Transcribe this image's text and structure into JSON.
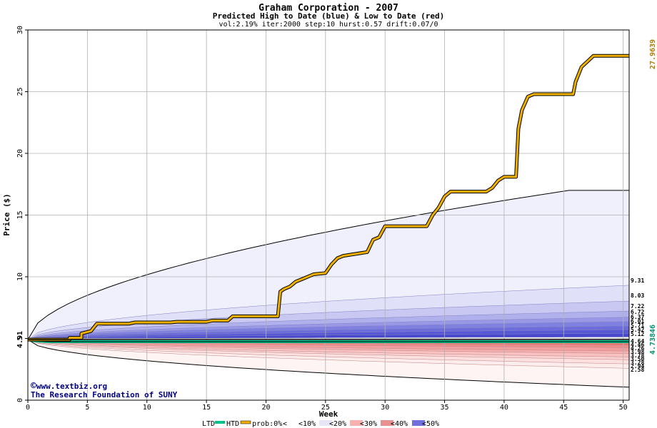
{
  "chart_data": {
    "type": "area",
    "title": "Graham Corporation - 2007",
    "subtitle": "Predicted High to Date (blue) &  Low to Date (red)",
    "params": "vol:2.19% iter:2000 step:10 hurst:0.57 drift:0.07/0",
    "xlabel": "Week",
    "ylabel": "Price ($)",
    "xlim": [
      0,
      50.5
    ],
    "ylim": [
      0,
      30
    ],
    "x_ticks": [
      0,
      5,
      10,
      15,
      20,
      25,
      30,
      35,
      40,
      45,
      50
    ],
    "y_ticks": [
      0,
      5,
      10,
      15,
      20,
      25,
      30
    ],
    "grid": true,
    "start_value": 4.91,
    "start_label": "4.91",
    "actual_high_label": "27.9639",
    "actual_low_label": "4.73846",
    "right_labels_high": [
      "9.31",
      "8.03",
      "7.22",
      "6.72",
      "6.37",
      "6.01",
      "5.71",
      "5.42",
      "5.12"
    ],
    "right_labels_low": [
      "4.64",
      "4.46",
      "4.26",
      "3.98",
      "3.78",
      "3.50",
      "3.28",
      "2.94",
      "2.58"
    ],
    "htd_final_values": [
      17.0,
      9.31,
      8.03,
      7.22,
      6.72,
      6.37,
      6.01,
      5.71,
      5.42,
      5.12
    ],
    "ltd_final_values": [
      4.64,
      4.46,
      4.26,
      3.98,
      3.78,
      3.5,
      3.28,
      2.94,
      2.58,
      1.05
    ],
    "high_band_colors": [
      "#f0f0fc",
      "#e0e0f8",
      "#c8c8f2",
      "#b0b0ec",
      "#9898e6",
      "#8080e0",
      "#6c6cda",
      "#5858d4",
      "#4848cc"
    ],
    "low_band_colors": [
      "#e87878",
      "#ee8c8c",
      "#f29e9e",
      "#f6b0b0",
      "#f8c2c2",
      "#fad2d2",
      "#fce0e0",
      "#fdecec",
      "#fef4f4"
    ],
    "ltd_line": {
      "color": "#00c08c",
      "x": [
        0,
        0.2,
        0.5,
        1.0,
        1.5,
        2.0,
        50.5
      ],
      "y": [
        4.91,
        4.87,
        4.82,
        4.78,
        4.76,
        4.74,
        4.74
      ]
    },
    "htd_line": {
      "color": "#f0b000",
      "x": [
        0,
        3.5,
        3.5,
        4.5,
        4.5,
        5.3,
        5.8,
        8.5,
        9.0,
        12.0,
        12.5,
        15.0,
        15.5,
        16.8,
        17.2,
        21.0,
        21.2,
        21.5,
        22.0,
        22.5,
        23.0,
        24.0,
        25.0,
        25.5,
        26.0,
        26.5,
        28.5,
        29.0,
        29.5,
        30.0,
        33.5,
        34.0,
        34.5,
        35.0,
        35.5,
        38.5,
        39.0,
        39.5,
        40.0,
        41.0,
        41.2,
        41.5,
        42.0,
        42.5,
        45.8,
        46.0,
        46.5,
        47.5,
        50.5
      ],
      "y": [
        4.91,
        4.91,
        5.05,
        5.05,
        5.4,
        5.6,
        6.2,
        6.2,
        6.3,
        6.3,
        6.35,
        6.35,
        6.45,
        6.45,
        6.8,
        6.8,
        8.8,
        9.0,
        9.2,
        9.6,
        9.8,
        10.2,
        10.3,
        11.0,
        11.5,
        11.7,
        12.0,
        13.0,
        13.2,
        14.1,
        14.1,
        15.0,
        15.6,
        16.5,
        16.9,
        16.9,
        17.2,
        17.8,
        18.1,
        18.1,
        22.0,
        23.5,
        24.6,
        24.8,
        24.8,
        25.8,
        27.0,
        27.9,
        27.9
      ]
    }
  },
  "credit": {
    "site": "www.textbiz.org",
    "org": "The Research Foundation of SUNY"
  },
  "legend": {
    "ltd": "LTD",
    "htd": "HTD",
    "prob": "prob:0%",
    "lt": "<",
    "items": [
      "<10%",
      "<20%",
      "<30%",
      "<40%",
      "<50%"
    ],
    "colors": [
      "#ffffff",
      "#e6e6f8",
      "#f6b0b0",
      "#e89090",
      "#7070dc"
    ]
  }
}
